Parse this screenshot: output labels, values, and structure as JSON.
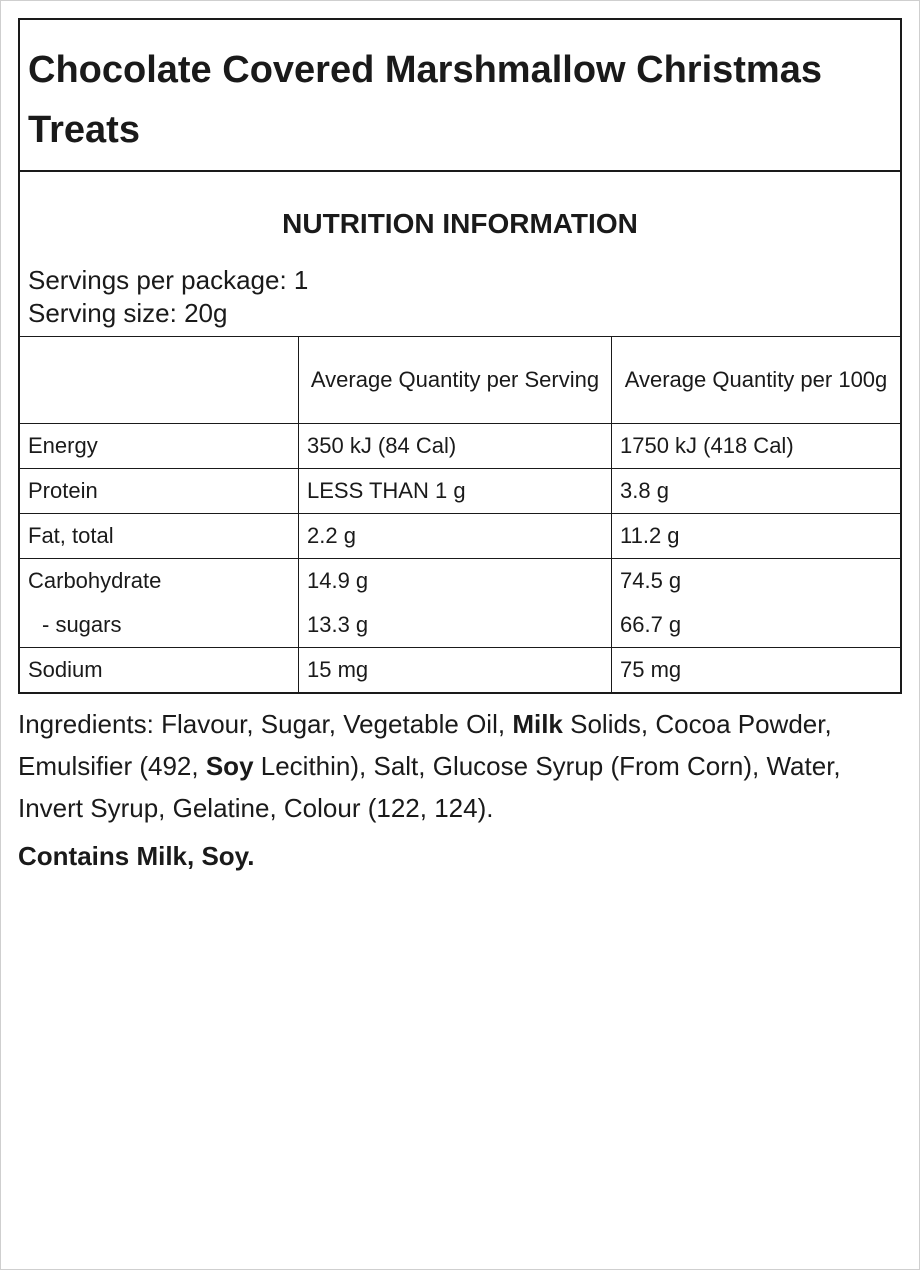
{
  "title": "Chocolate Covered Marshmallow Christmas Treats",
  "nutrition": {
    "heading": "NUTRITION INFORMATION",
    "servings_per_package": "Servings per package: 1",
    "serving_size": "Serving size: 20g",
    "columns": {
      "label": "",
      "per_serving": "Average Quantity per Serving",
      "per_100g": "Average Quantity per 100g"
    },
    "rows": {
      "energy": {
        "label": "Energy",
        "serving": "350 kJ (84 Cal)",
        "per100": "1750 kJ (418 Cal)"
      },
      "protein": {
        "label": "Protein",
        "serving": "LESS THAN 1 g",
        "per100": "3.8 g"
      },
      "fat": {
        "label": "Fat, total",
        "serving": "2.2 g",
        "per100": "11.2 g"
      },
      "carbohydrate": {
        "label": "Carbohydrate",
        "serving": "14.9 g",
        "per100": "74.5 g"
      },
      "sugars": {
        "label": "- sugars",
        "serving": "13.3 g",
        "per100": "66.7 g"
      },
      "sodium": {
        "label": "Sodium",
        "serving": "15 mg",
        "per100": "75 mg"
      }
    }
  },
  "ingredients": {
    "part1": "Ingredients: Flavour, Sugar, Vegetable Oil, ",
    "allergen1": "Milk",
    "part2": " Solids, Cocoa Powder, Emulsifier (492, ",
    "allergen2": "Soy",
    "part3": " Lecithin), Salt, Glucose Syrup (From Corn), Water, Invert Syrup, Gelatine, Colour (122, 124)."
  },
  "contains": "Contains Milk, Soy."
}
